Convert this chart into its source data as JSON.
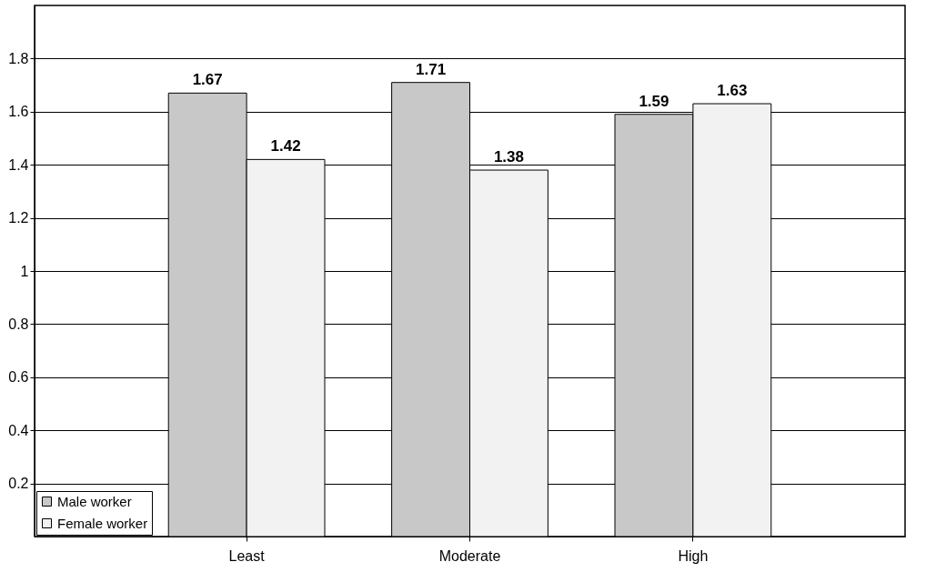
{
  "chart_data": {
    "type": "bar",
    "categories": [
      "Least",
      "Moderate",
      "High"
    ],
    "series": [
      {
        "name": "Male worker",
        "color": "#c8c8c8",
        "values": [
          1.67,
          1.71,
          1.59
        ]
      },
      {
        "name": "Female worker",
        "color": "#f2f2f2",
        "values": [
          1.42,
          1.38,
          1.63
        ]
      }
    ],
    "ylim": [
      0,
      2.0
    ],
    "yticks": [
      0.2,
      0.4,
      0.6,
      0.8,
      1,
      1.2,
      1.4,
      1.6,
      1.8
    ],
    "grid": "y",
    "legend": "bottom left",
    "data_labels": true
  }
}
